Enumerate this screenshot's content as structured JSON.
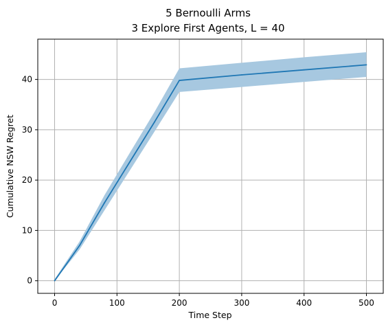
{
  "chart_data": {
    "type": "line",
    "title_line1": "5 Bernoulli Arms",
    "title_line2": "3 Explore First Agents, L = 40",
    "xlabel": "Time Step",
    "ylabel": "Cumulative NSW Regret",
    "xlim": [
      -27,
      527
    ],
    "ylim": [
      -2.5,
      48
    ],
    "xticks": [
      0,
      100,
      200,
      300,
      400,
      500
    ],
    "yticks": [
      0,
      10,
      20,
      30,
      40
    ],
    "grid": true,
    "series": [
      {
        "color": "#1f77b4",
        "band_color": "#a7c8e0",
        "x": [
          0,
          40,
          80,
          120,
          160,
          200,
          300,
          400,
          500
        ],
        "y": [
          0,
          7,
          15.5,
          23.5,
          31.5,
          39.8,
          40.9,
          41.9,
          42.9
        ],
        "lower": [
          0,
          6.2,
          14,
          21.8,
          29.6,
          37.5,
          38.5,
          39.5,
          40.5
        ],
        "upper": [
          0.3,
          7.8,
          17,
          25.3,
          33.5,
          42.2,
          43.3,
          44.4,
          45.4
        ]
      }
    ]
  }
}
